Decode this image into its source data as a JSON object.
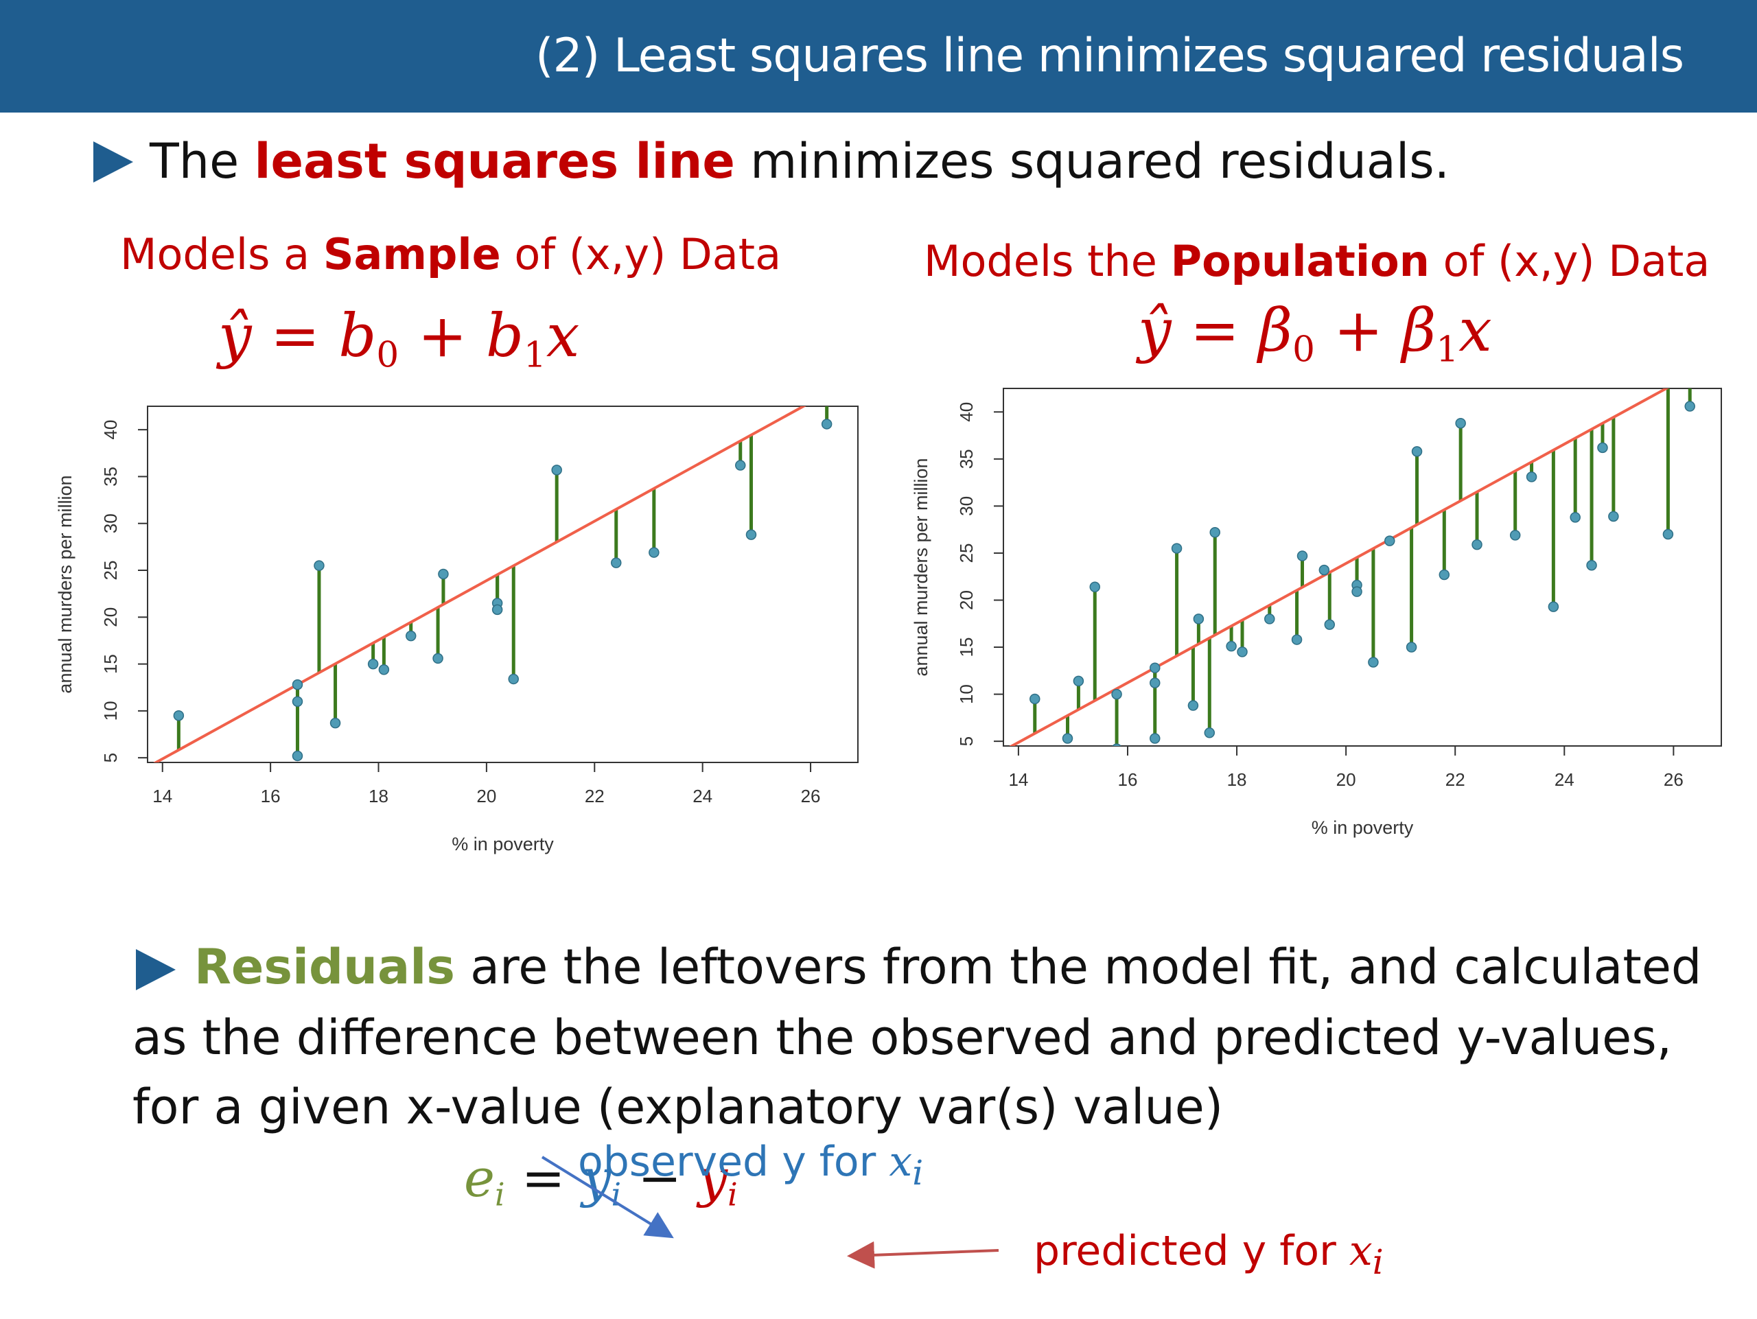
{
  "header": {
    "title": "(2) Least squares line minimizes squared residuals"
  },
  "bullet1": {
    "prefix": "The",
    "highlight": "least squares line",
    "suffix": "minimizes squared residuals."
  },
  "left_panel": {
    "heading_prefix": "Models a",
    "heading_bold": "Sample",
    "heading_suffix": "of (x,y) Data",
    "formula": {
      "lhs": "ŷ",
      "eq": "=",
      "b0": "b",
      "b0_sub": "0",
      "plus": "+",
      "b1": "b",
      "b1_sub": "1",
      "x": "x"
    }
  },
  "right_panel": {
    "heading_prefix": "Models the",
    "heading_bold": "Population",
    "heading_suffix": "of (x,y) Data",
    "formula": {
      "lhs": "ŷ",
      "eq": "=",
      "b0": "β",
      "b0_sub": "0",
      "plus": "+",
      "b1": "β",
      "b1_sub": "1",
      "x": "x"
    }
  },
  "bullet2": {
    "highlight": "Residuals",
    "line1_rest": "are the leftovers from the model fit, and calculated",
    "line2": "as the difference between the observed and predicted y-values,",
    "line3": "for a given x-value (explanatory var(s) value)"
  },
  "residual_formula": {
    "e": "e",
    "e_sub": "i",
    "eq": "=",
    "y": "y",
    "y_sub": "i",
    "minus": "−",
    "yhat": "y",
    "yhat_sub": "i"
  },
  "annotations": {
    "observed": "observed y for",
    "observed_var": "x",
    "observed_sub": "i",
    "predicted": "predicted y for",
    "predicted_var": "x",
    "predicted_sub": "i"
  },
  "colors": {
    "header_bg": "#1f5d8f",
    "accent_red": "#c00000",
    "accent_green": "#77933c",
    "accent_blue": "#2e75b6",
    "fit_line": "#f0604a",
    "residual_segment": "#3c7a1e",
    "point": "#4f9bb5"
  },
  "chart_data": [
    {
      "type": "scatter",
      "title": "",
      "xlabel": "% in poverty",
      "ylabel": "annual murders per million",
      "xlim": [
        13.8,
        26.8
      ],
      "ylim": [
        4.5,
        42.5
      ],
      "xticks": [
        14,
        16,
        18,
        20,
        22,
        24,
        26
      ],
      "yticks": [
        5,
        10,
        15,
        20,
        25,
        30,
        35,
        40
      ],
      "grid": false,
      "fit_line": {
        "intercept": -39.5,
        "slope": 3.17
      },
      "points": [
        {
          "x": 14.3,
          "y": 9.5
        },
        {
          "x": 16.5,
          "y": 12.8
        },
        {
          "x": 16.5,
          "y": 11.0
        },
        {
          "x": 16.5,
          "y": 5.2
        },
        {
          "x": 16.9,
          "y": 25.5
        },
        {
          "x": 17.2,
          "y": 8.7
        },
        {
          "x": 17.9,
          "y": 15.0
        },
        {
          "x": 18.1,
          "y": 14.4
        },
        {
          "x": 18.6,
          "y": 18.0
        },
        {
          "x": 19.1,
          "y": 15.6
        },
        {
          "x": 19.2,
          "y": 24.6
        },
        {
          "x": 20.2,
          "y": 21.5
        },
        {
          "x": 20.2,
          "y": 20.8
        },
        {
          "x": 20.5,
          "y": 13.4
        },
        {
          "x": 21.3,
          "y": 35.7
        },
        {
          "x": 22.4,
          "y": 25.8
        },
        {
          "x": 23.1,
          "y": 26.9
        },
        {
          "x": 24.7,
          "y": 36.2
        },
        {
          "x": 24.9,
          "y": 28.8
        },
        {
          "x": 26.3,
          "y": 40.6
        }
      ]
    },
    {
      "type": "scatter",
      "title": "",
      "xlabel": "% in poverty",
      "ylabel": "annual murders per million",
      "xlim": [
        13.8,
        26.8
      ],
      "ylim": [
        4.5,
        42.5
      ],
      "xticks": [
        14,
        16,
        18,
        20,
        22,
        24,
        26
      ],
      "yticks": [
        5,
        10,
        15,
        20,
        25,
        30,
        35,
        40
      ],
      "grid": false,
      "fit_line": {
        "intercept": -39.5,
        "slope": 3.17
      },
      "points": [
        {
          "x": 14.3,
          "y": 9.5
        },
        {
          "x": 14.9,
          "y": 5.3
        },
        {
          "x": 15.1,
          "y": 11.4
        },
        {
          "x": 15.4,
          "y": 21.4
        },
        {
          "x": 15.8,
          "y": 10.0
        },
        {
          "x": 15.8,
          "y": 4.2
        },
        {
          "x": 16.5,
          "y": 12.8
        },
        {
          "x": 16.5,
          "y": 11.2
        },
        {
          "x": 16.5,
          "y": 5.3
        },
        {
          "x": 16.9,
          "y": 25.5
        },
        {
          "x": 17.2,
          "y": 8.8
        },
        {
          "x": 17.3,
          "y": 18.0
        },
        {
          "x": 17.5,
          "y": 5.9
        },
        {
          "x": 17.6,
          "y": 27.2
        },
        {
          "x": 17.9,
          "y": 15.1
        },
        {
          "x": 18.1,
          "y": 14.5
        },
        {
          "x": 18.6,
          "y": 18.0
        },
        {
          "x": 19.1,
          "y": 15.8
        },
        {
          "x": 19.2,
          "y": 24.7
        },
        {
          "x": 19.6,
          "y": 23.2
        },
        {
          "x": 19.7,
          "y": 17.4
        },
        {
          "x": 20.2,
          "y": 21.6
        },
        {
          "x": 20.2,
          "y": 20.9
        },
        {
          "x": 20.5,
          "y": 13.4
        },
        {
          "x": 20.8,
          "y": 26.3
        },
        {
          "x": 21.2,
          "y": 15.0
        },
        {
          "x": 21.3,
          "y": 35.8
        },
        {
          "x": 21.8,
          "y": 22.7
        },
        {
          "x": 22.1,
          "y": 38.8
        },
        {
          "x": 22.4,
          "y": 25.9
        },
        {
          "x": 23.1,
          "y": 26.9
        },
        {
          "x": 23.4,
          "y": 33.1
        },
        {
          "x": 23.8,
          "y": 19.3
        },
        {
          "x": 24.2,
          "y": 28.8
        },
        {
          "x": 24.5,
          "y": 23.7
        },
        {
          "x": 24.7,
          "y": 36.2
        },
        {
          "x": 24.9,
          "y": 28.9
        },
        {
          "x": 25.9,
          "y": 27.0
        },
        {
          "x": 26.3,
          "y": 40.6
        }
      ]
    }
  ]
}
